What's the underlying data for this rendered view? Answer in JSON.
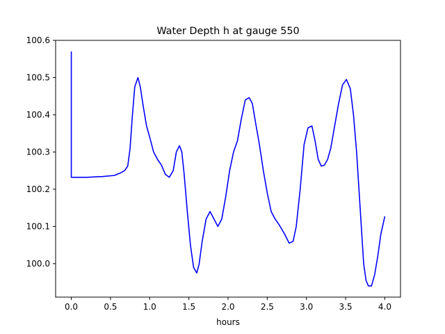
{
  "chart_data": {
    "type": "line",
    "title": "Water Depth h at gauge 550",
    "xlabel": "hours",
    "ylabel": "",
    "xlim": [
      -0.2,
      4.2
    ],
    "ylim": [
      99.91,
      100.6
    ],
    "xticks": [
      0.0,
      0.5,
      1.0,
      1.5,
      2.0,
      2.5,
      3.0,
      3.5,
      4.0
    ],
    "xtick_labels": [
      "0.0",
      "0.5",
      "1.0",
      "1.5",
      "2.0",
      "2.5",
      "3.0",
      "3.5",
      "4.0"
    ],
    "yticks": [
      100.0,
      100.1,
      100.2,
      100.3,
      100.4,
      100.5,
      100.6
    ],
    "ytick_labels": [
      "100.0",
      "100.1",
      "100.2",
      "100.3",
      "100.4",
      "100.5",
      "100.6"
    ],
    "grid": false,
    "series": [
      {
        "color": "#0000ff",
        "x": [
          0.0,
          0.0,
          0.005,
          0.2,
          0.4,
          0.55,
          0.62,
          0.68,
          0.72,
          0.75,
          0.78,
          0.81,
          0.85,
          0.88,
          0.92,
          0.96,
          1.0,
          1.05,
          1.1,
          1.15,
          1.2,
          1.25,
          1.3,
          1.34,
          1.38,
          1.41,
          1.44,
          1.48,
          1.52,
          1.56,
          1.6,
          1.63,
          1.67,
          1.72,
          1.77,
          1.82,
          1.87,
          1.92,
          1.97,
          2.02,
          2.07,
          2.12,
          2.17,
          2.22,
          2.27,
          2.31,
          2.35,
          2.4,
          2.45,
          2.5,
          2.55,
          2.6,
          2.65,
          2.72,
          2.78,
          2.83,
          2.87,
          2.92,
          2.97,
          3.02,
          3.07,
          3.11,
          3.15,
          3.19,
          3.23,
          3.27,
          3.31,
          3.36,
          3.41,
          3.46,
          3.51,
          3.56,
          3.6,
          3.64,
          3.67,
          3.7,
          3.73,
          3.76,
          3.79,
          3.83,
          3.87,
          3.91,
          3.95,
          4.0
        ],
        "y": [
          100.57,
          100.232,
          100.232,
          100.232,
          100.234,
          100.237,
          100.243,
          100.25,
          100.262,
          100.31,
          100.4,
          100.475,
          100.5,
          100.475,
          100.42,
          100.37,
          100.34,
          100.3,
          100.28,
          100.265,
          100.24,
          100.232,
          100.25,
          100.3,
          100.317,
          100.3,
          100.24,
          100.14,
          100.05,
          99.99,
          99.975,
          99.998,
          100.06,
          100.12,
          100.14,
          100.12,
          100.1,
          100.12,
          100.18,
          100.25,
          100.3,
          100.33,
          100.39,
          100.44,
          100.446,
          100.43,
          100.38,
          100.32,
          100.25,
          100.19,
          100.14,
          100.12,
          100.105,
          100.08,
          100.055,
          100.06,
          100.1,
          100.2,
          100.32,
          100.365,
          100.37,
          100.33,
          100.28,
          100.262,
          100.265,
          100.28,
          100.31,
          100.37,
          100.43,
          100.48,
          100.495,
          100.47,
          100.4,
          100.3,
          100.2,
          100.1,
          100.0,
          99.955,
          99.94,
          99.94,
          99.97,
          100.02,
          100.08,
          100.127
        ]
      }
    ]
  }
}
